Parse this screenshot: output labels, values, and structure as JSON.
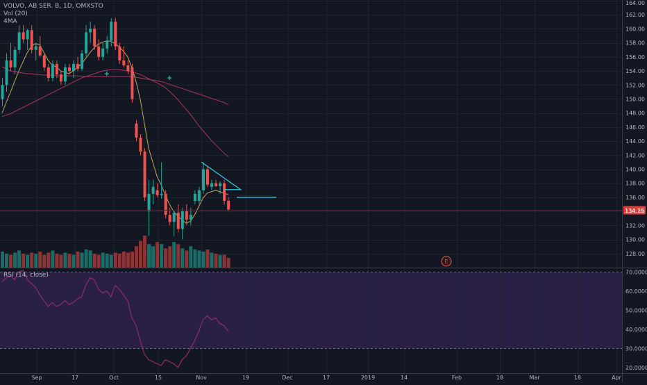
{
  "header": {
    "symbol_line": "VOLVO, AB SER. B, 1D, OMXSTO",
    "volume_label": "Vol (20)",
    "ma_label": "4MA"
  },
  "rsi_panel": {
    "label": "RSI (14, close)"
  },
  "price_badge": "134.25",
  "earnings_marker": "E",
  "colors": {
    "background": "#131722",
    "up": "#26a69a",
    "down": "#ef5350",
    "up_volume": "#1e7a72",
    "down_volume": "#a13a39",
    "ma_short": "#b9a44a",
    "ma_long": "#a83660",
    "ma_dark": "#2b2f6e",
    "drawing": "#2ec4d9",
    "rsi_line": "#8b2d6b",
    "rsi_band": "#2a1f44",
    "price_badge": "#e53935"
  },
  "chart_data": {
    "type": "candlestick",
    "price_axis": {
      "min": 126,
      "max": 164,
      "ticks": [
        "128.00",
        "130.00",
        "132.00",
        "134.00",
        "136.00",
        "138.00",
        "140.00",
        "142.00",
        "144.00",
        "146.00",
        "148.00",
        "150.00",
        "152.00",
        "154.00",
        "156.00",
        "158.00",
        "160.00",
        "162.00",
        "164.00"
      ]
    },
    "rsi_axis": {
      "min": 17,
      "max": 72,
      "ticks": [
        "20.0000",
        "30.0000",
        "40.0000",
        "50.0000",
        "60.0000",
        "70.0000"
      ],
      "bands": [
        30,
        70
      ]
    },
    "time_axis": [
      "Sep",
      "17",
      "Oct",
      "15",
      "Nov",
      "19",
      "Dec",
      "17",
      "2019",
      "14",
      "Feb",
      "18",
      "Mar",
      "18",
      "Apr"
    ],
    "last_price": 134.25,
    "candles": [
      {
        "o": 150.0,
        "h": 153.0,
        "l": 149.0,
        "c": 152.0
      },
      {
        "o": 152.0,
        "h": 156.5,
        "l": 151.0,
        "c": 155.5
      },
      {
        "o": 155.5,
        "h": 158.0,
        "l": 154.0,
        "c": 154.5
      },
      {
        "o": 154.5,
        "h": 157.5,
        "l": 153.5,
        "c": 157.0
      },
      {
        "o": 157.0,
        "h": 160.5,
        "l": 156.5,
        "c": 159.5
      },
      {
        "o": 159.5,
        "h": 160.5,
        "l": 158.0,
        "c": 158.5
      },
      {
        "o": 158.5,
        "h": 160.0,
        "l": 157.0,
        "c": 159.8
      },
      {
        "o": 159.8,
        "h": 160.5,
        "l": 156.5,
        "c": 157.0
      },
      {
        "o": 157.0,
        "h": 158.0,
        "l": 155.5,
        "c": 157.5
      },
      {
        "o": 157.5,
        "h": 159.0,
        "l": 156.0,
        "c": 156.2
      },
      {
        "o": 156.2,
        "h": 156.5,
        "l": 154.0,
        "c": 154.5
      },
      {
        "o": 154.5,
        "h": 155.0,
        "l": 152.5,
        "c": 153.0
      },
      {
        "o": 153.0,
        "h": 155.5,
        "l": 152.5,
        "c": 155.0
      },
      {
        "o": 155.0,
        "h": 155.5,
        "l": 153.0,
        "c": 153.5
      },
      {
        "o": 153.5,
        "h": 154.0,
        "l": 152.0,
        "c": 152.5
      },
      {
        "o": 152.5,
        "h": 155.0,
        "l": 152.0,
        "c": 154.5
      },
      {
        "o": 154.5,
        "h": 155.0,
        "l": 153.5,
        "c": 154.0
      },
      {
        "o": 154.0,
        "h": 155.5,
        "l": 153.0,
        "c": 155.0
      },
      {
        "o": 155.0,
        "h": 156.0,
        "l": 154.0,
        "c": 154.3
      },
      {
        "o": 154.3,
        "h": 157.0,
        "l": 154.0,
        "c": 156.5
      },
      {
        "o": 156.5,
        "h": 160.5,
        "l": 156.0,
        "c": 159.5
      },
      {
        "o": 159.5,
        "h": 161.0,
        "l": 158.0,
        "c": 160.0
      },
      {
        "o": 160.0,
        "h": 160.5,
        "l": 157.0,
        "c": 157.5
      },
      {
        "o": 157.5,
        "h": 158.5,
        "l": 155.5,
        "c": 156.0
      },
      {
        "o": 156.0,
        "h": 158.0,
        "l": 155.5,
        "c": 157.2
      },
      {
        "o": 157.2,
        "h": 159.0,
        "l": 156.5,
        "c": 158.3
      },
      {
        "o": 158.3,
        "h": 161.5,
        "l": 157.5,
        "c": 161.0
      },
      {
        "o": 161.0,
        "h": 161.5,
        "l": 157.0,
        "c": 157.5
      },
      {
        "o": 157.5,
        "h": 158.0,
        "l": 155.0,
        "c": 155.5
      },
      {
        "o": 155.5,
        "h": 157.5,
        "l": 154.5,
        "c": 154.8
      },
      {
        "o": 154.8,
        "h": 155.5,
        "l": 153.5,
        "c": 154.0
      },
      {
        "o": 154.5,
        "h": 155.0,
        "l": 149.5,
        "c": 150.0
      },
      {
        "o": 146.5,
        "h": 147.0,
        "l": 144.0,
        "c": 144.5
      },
      {
        "o": 144.5,
        "h": 145.0,
        "l": 142.0,
        "c": 142.5
      },
      {
        "o": 142.5,
        "h": 143.0,
        "l": 135.5,
        "c": 136.0
      },
      {
        "o": 134.0,
        "h": 138.5,
        "l": 130.5,
        "c": 136.5
      },
      {
        "o": 136.5,
        "h": 138.5,
        "l": 135.0,
        "c": 137.5
      },
      {
        "o": 137.0,
        "h": 138.0,
        "l": 136.0,
        "c": 136.3
      },
      {
        "o": 136.3,
        "h": 141.0,
        "l": 135.8,
        "c": 136.5
      },
      {
        "o": 136.5,
        "h": 137.0,
        "l": 133.0,
        "c": 133.5
      },
      {
        "o": 133.5,
        "h": 134.5,
        "l": 132.0,
        "c": 132.5
      },
      {
        "o": 132.5,
        "h": 134.0,
        "l": 130.5,
        "c": 133.8
      },
      {
        "o": 133.8,
        "h": 135.0,
        "l": 131.0,
        "c": 131.5
      },
      {
        "o": 131.5,
        "h": 134.5,
        "l": 130.0,
        "c": 134.0
      },
      {
        "o": 134.0,
        "h": 135.0,
        "l": 132.0,
        "c": 132.8
      },
      {
        "o": 132.8,
        "h": 134.5,
        "l": 132.0,
        "c": 133.5
      },
      {
        "o": 135.5,
        "h": 137.0,
        "l": 135.0,
        "c": 136.5
      },
      {
        "o": 135.5,
        "h": 137.5,
        "l": 135.0,
        "c": 137.0
      },
      {
        "o": 137.0,
        "h": 141.0,
        "l": 136.5,
        "c": 140.0
      },
      {
        "o": 140.0,
        "h": 140.5,
        "l": 137.5,
        "c": 137.8
      },
      {
        "o": 137.5,
        "h": 138.5,
        "l": 137.0,
        "c": 138.0
      },
      {
        "o": 138.0,
        "h": 138.5,
        "l": 137.5,
        "c": 137.6
      },
      {
        "o": 137.6,
        "h": 138.3,
        "l": 136.5,
        "c": 138.0
      },
      {
        "o": 138.0,
        "h": 138.5,
        "l": 135.0,
        "c": 135.5
      },
      {
        "o": 135.5,
        "h": 136.0,
        "l": 134.0,
        "c": 134.25
      }
    ],
    "volume": [
      15,
      13,
      12,
      14,
      16,
      13,
      12,
      14,
      13,
      15,
      12,
      14,
      16,
      13,
      12,
      14,
      13,
      12,
      15,
      14,
      17,
      16,
      13,
      12,
      14,
      13,
      12,
      14,
      13,
      15,
      14,
      15,
      20,
      25,
      30,
      22,
      20,
      24,
      22,
      18,
      20,
      24,
      22,
      18,
      16,
      20,
      17,
      16,
      15,
      17,
      14,
      13,
      12,
      12,
      9
    ],
    "ma_short": [
      148.0,
      149.5,
      151.0,
      152.5,
      154.0,
      155.3,
      156.6,
      157.5,
      157.9,
      157.7,
      156.6,
      155.5,
      154.8,
      154.6,
      154.0,
      153.8,
      153.6,
      154.0,
      154.5,
      155.0,
      155.8,
      156.6,
      157.3,
      157.8,
      158.1,
      158.3,
      158.2,
      157.9,
      157.4,
      156.8,
      156.0,
      154.5,
      152.5,
      150.0,
      146.5,
      143.0,
      141.0,
      139.0,
      137.8,
      136.3,
      135.0,
      134.0,
      133.3,
      132.8,
      132.3,
      132.6,
      133.5,
      134.7,
      135.9,
      136.6,
      136.8,
      137.0,
      136.8,
      136.6,
      136.4
    ],
    "ma_long": [
      147.5,
      147.7,
      147.9,
      148.2,
      148.5,
      148.8,
      149.1,
      149.4,
      149.7,
      150.0,
      150.3,
      150.6,
      150.9,
      151.2,
      151.5,
      151.8,
      152.1,
      152.4,
      152.7,
      153.0,
      153.2,
      153.4,
      153.6,
      153.8,
      154.0,
      154.1,
      154.2,
      154.2,
      154.2,
      154.1,
      154.0,
      153.9,
      153.7,
      153.5,
      153.2,
      152.9,
      152.6,
      152.3,
      152.0,
      151.6,
      151.1,
      150.5,
      149.9,
      149.2,
      148.5,
      147.8,
      147.0,
      146.2,
      145.5,
      144.8,
      144.1,
      143.5,
      142.9,
      142.3,
      141.8
    ],
    "ma_flat": [
      154.6,
      154.3,
      154.0,
      153.9,
      153.8,
      153.7,
      153.6,
      153.6,
      153.5,
      153.5,
      153.4,
      153.4,
      153.4,
      153.3,
      153.3,
      153.3,
      153.3,
      153.3,
      153.3,
      153.2,
      153.2,
      153.2,
      153.2,
      153.2,
      153.2,
      153.2,
      153.2,
      153.2,
      153.2,
      153.2,
      153.2,
      153.2,
      153.1,
      153.0,
      152.9,
      152.8,
      152.7,
      152.6,
      152.5,
      152.3,
      152.1,
      151.9,
      151.7,
      151.5,
      151.3,
      151.1,
      150.9,
      150.7,
      150.5,
      150.3,
      150.1,
      149.9,
      149.7,
      149.5,
      149.2
    ],
    "rsi": [
      65,
      67,
      68,
      66,
      70,
      71,
      66,
      64,
      62,
      58,
      55,
      52,
      54,
      52,
      53,
      55,
      53,
      54,
      56,
      57,
      63,
      67,
      66,
      61,
      59,
      60,
      57,
      63,
      61,
      58,
      55,
      46,
      42,
      34,
      27,
      24,
      23,
      22,
      21,
      24,
      23,
      22,
      20,
      24,
      26,
      30,
      34,
      39,
      45,
      47,
      45,
      46,
      43,
      42,
      39
    ],
    "drawings": {
      "triangle_top": [
        141.0,
        137.1
      ],
      "triangle_base": 137.1,
      "target_line": 136.0
    }
  }
}
